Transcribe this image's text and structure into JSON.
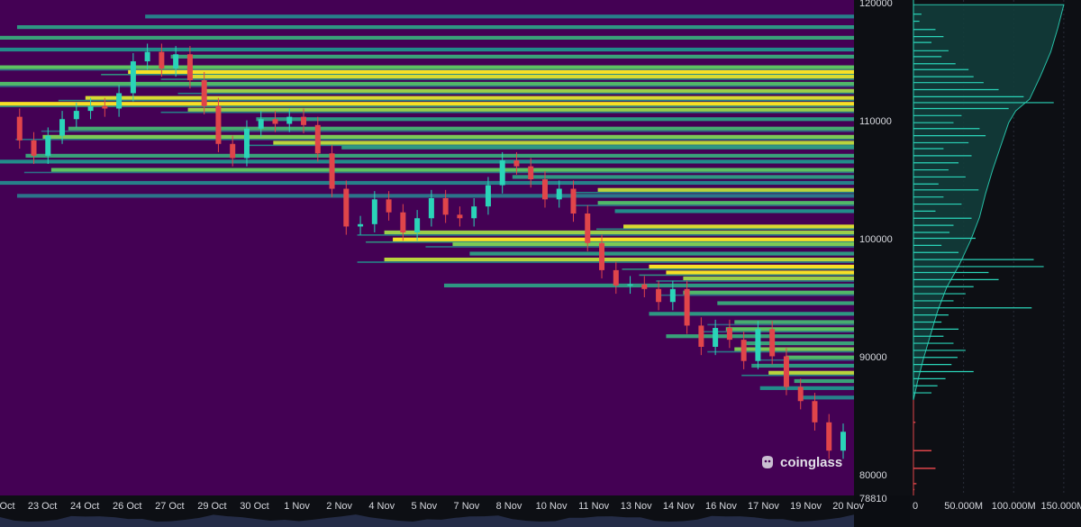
{
  "chart_data": {
    "type": "heatmap",
    "title": "",
    "x_tick_labels": [
      "Oct",
      "23 Oct",
      "24 Oct",
      "26 Oct",
      "27 Oct",
      "29 Oct",
      "30 Oct",
      "1 Nov",
      "2 Nov",
      "4 Nov",
      "5 Nov",
      "7 Nov",
      "8 Nov",
      "10 Nov",
      "11 Nov",
      "13 Nov",
      "14 Nov",
      "16 Nov",
      "17 Nov",
      "19 Nov",
      "20 Nov"
    ],
    "y_ticks": [
      120000,
      110000,
      100000,
      90000,
      80000
    ],
    "y_current_price": 78810,
    "y_range": [
      78400,
      120400
    ],
    "colormap": [
      "#440154",
      "#3b528b",
      "#21918c",
      "#5ec962",
      "#fde725"
    ],
    "price_path": [
      {
        "t": 0,
        "p": 110500
      },
      {
        "t": 1,
        "p": 108500
      },
      {
        "t": 2,
        "p": 107200
      },
      {
        "t": 3,
        "p": 108900
      },
      {
        "t": 4,
        "p": 110300
      },
      {
        "t": 5,
        "p": 111000
      },
      {
        "t": 6,
        "p": 111400
      },
      {
        "t": 7,
        "p": 111200
      },
      {
        "t": 8,
        "p": 112500
      },
      {
        "t": 9,
        "p": 115200
      },
      {
        "t": 10,
        "p": 116000
      },
      {
        "t": 11,
        "p": 114600
      },
      {
        "t": 12,
        "p": 115800
      },
      {
        "t": 13,
        "p": 113600
      },
      {
        "t": 14,
        "p": 111400
      },
      {
        "t": 15,
        "p": 108200
      },
      {
        "t": 16,
        "p": 107000
      },
      {
        "t": 17,
        "p": 109500
      },
      {
        "t": 18,
        "p": 110300
      },
      {
        "t": 19,
        "p": 109900
      },
      {
        "t": 20,
        "p": 110500
      },
      {
        "t": 21,
        "p": 109800
      },
      {
        "t": 22,
        "p": 107400
      },
      {
        "t": 23,
        "p": 104400
      },
      {
        "t": 24,
        "p": 101200
      },
      {
        "t": 25,
        "p": 101400
      },
      {
        "t": 26,
        "p": 103500
      },
      {
        "t": 27,
        "p": 102400
      },
      {
        "t": 28,
        "p": 100700
      },
      {
        "t": 29,
        "p": 101900
      },
      {
        "t": 30,
        "p": 103600
      },
      {
        "t": 31,
        "p": 102200
      },
      {
        "t": 32,
        "p": 101900
      },
      {
        "t": 33,
        "p": 102900
      },
      {
        "t": 34,
        "p": 104700
      },
      {
        "t": 35,
        "p": 106800
      },
      {
        "t": 36,
        "p": 106300
      },
      {
        "t": 37,
        "p": 105200
      },
      {
        "t": 38,
        "p": 103500
      },
      {
        "t": 39,
        "p": 104400
      },
      {
        "t": 40,
        "p": 102300
      },
      {
        "t": 41,
        "p": 99800
      },
      {
        "t": 42,
        "p": 97500
      },
      {
        "t": 43,
        "p": 96200
      },
      {
        "t": 44,
        "p": 96300
      },
      {
        "t": 45,
        "p": 95900
      },
      {
        "t": 46,
        "p": 94800
      },
      {
        "t": 47,
        "p": 95900
      },
      {
        "t": 48,
        "p": 92800
      },
      {
        "t": 49,
        "p": 91000
      },
      {
        "t": 50,
        "p": 92600
      },
      {
        "t": 51,
        "p": 91600
      },
      {
        "t": 52,
        "p": 89800
      },
      {
        "t": 53,
        "p": 92500
      },
      {
        "t": 54,
        "p": 90200
      },
      {
        "t": 55,
        "p": 87600
      },
      {
        "t": 56,
        "p": 86400
      },
      {
        "t": 57,
        "p": 84600
      },
      {
        "t": 58,
        "p": 82200
      },
      {
        "t": 59,
        "p": 83800
      }
    ],
    "liquidation_levels": [
      {
        "price": 119000,
        "start": 0.17,
        "intensity": 0.45
      },
      {
        "price": 118100,
        "start": 0.02,
        "intensity": 0.55
      },
      {
        "price": 117200,
        "start": 0.0,
        "intensity": 0.6
      },
      {
        "price": 116200,
        "start": 0.0,
        "intensity": 0.5
      },
      {
        "price": 115600,
        "start": 0.2,
        "intensity": 0.6
      },
      {
        "price": 114700,
        "start": 0.0,
        "intensity": 0.75
      },
      {
        "price": 114300,
        "start": 0.15,
        "intensity": 1.0
      },
      {
        "price": 113900,
        "start": 0.22,
        "intensity": 0.95
      },
      {
        "price": 113300,
        "start": 0.0,
        "intensity": 0.7
      },
      {
        "price": 112700,
        "start": 0.24,
        "intensity": 0.85
      },
      {
        "price": 112100,
        "start": 0.1,
        "intensity": 0.95
      },
      {
        "price": 111600,
        "start": 0.0,
        "intensity": 1.0
      },
      {
        "price": 111100,
        "start": 0.22,
        "intensity": 0.85
      },
      {
        "price": 110300,
        "start": 0.3,
        "intensity": 0.55
      },
      {
        "price": 109500,
        "start": 0.08,
        "intensity": 0.65
      },
      {
        "price": 108800,
        "start": 0.05,
        "intensity": 0.8
      },
      {
        "price": 108300,
        "start": 0.32,
        "intensity": 0.9
      },
      {
        "price": 107900,
        "start": 0.4,
        "intensity": 0.55
      },
      {
        "price": 107200,
        "start": 0.03,
        "intensity": 0.6
      },
      {
        "price": 106700,
        "start": 0.0,
        "intensity": 0.5
      },
      {
        "price": 106000,
        "start": 0.06,
        "intensity": 0.75
      },
      {
        "price": 105400,
        "start": 0.6,
        "intensity": 0.55
      },
      {
        "price": 104900,
        "start": 0.0,
        "intensity": 0.45
      },
      {
        "price": 104300,
        "start": 0.7,
        "intensity": 0.9
      },
      {
        "price": 103800,
        "start": 0.02,
        "intensity": 0.4
      },
      {
        "price": 103200,
        "start": 0.7,
        "intensity": 0.7
      },
      {
        "price": 102500,
        "start": 0.72,
        "intensity": 0.5
      },
      {
        "price": 101200,
        "start": 0.73,
        "intensity": 0.95
      },
      {
        "price": 100700,
        "start": 0.45,
        "intensity": 0.85
      },
      {
        "price": 100100,
        "start": 0.46,
        "intensity": 1.0
      },
      {
        "price": 99700,
        "start": 0.53,
        "intensity": 0.8
      },
      {
        "price": 98900,
        "start": 0.55,
        "intensity": 0.55
      },
      {
        "price": 98400,
        "start": 0.45,
        "intensity": 0.9
      },
      {
        "price": 97800,
        "start": 0.76,
        "intensity": 1.0
      },
      {
        "price": 97300,
        "start": 0.78,
        "intensity": 1.0
      },
      {
        "price": 96800,
        "start": 0.8,
        "intensity": 0.85
      },
      {
        "price": 96200,
        "start": 0.52,
        "intensity": 0.55
      },
      {
        "price": 95600,
        "start": 0.8,
        "intensity": 0.7
      },
      {
        "price": 94700,
        "start": 0.84,
        "intensity": 0.6
      },
      {
        "price": 93800,
        "start": 0.76,
        "intensity": 0.55
      },
      {
        "price": 93100,
        "start": 0.86,
        "intensity": 0.65
      },
      {
        "price": 92500,
        "start": 0.85,
        "intensity": 0.75
      },
      {
        "price": 91900,
        "start": 0.78,
        "intensity": 0.6
      },
      {
        "price": 91300,
        "start": 0.87,
        "intensity": 0.6
      },
      {
        "price": 90800,
        "start": 0.86,
        "intensity": 0.8
      },
      {
        "price": 90100,
        "start": 0.92,
        "intensity": 0.7
      },
      {
        "price": 89400,
        "start": 0.88,
        "intensity": 0.55
      },
      {
        "price": 88800,
        "start": 0.9,
        "intensity": 0.9
      },
      {
        "price": 88100,
        "start": 0.93,
        "intensity": 0.6
      },
      {
        "price": 87500,
        "start": 0.89,
        "intensity": 0.5
      },
      {
        "price": 86700,
        "start": 0.94,
        "intensity": 0.45
      }
    ],
    "profile": {
      "x_tick_labels": [
        "0",
        "50.000M",
        "100.000M",
        "150.000M"
      ],
      "x_range_m": [
        0,
        160
      ],
      "cumulative": [
        {
          "price": 86500,
          "v": 0
        },
        {
          "price": 88000,
          "v": 4
        },
        {
          "price": 90000,
          "v": 10
        },
        {
          "price": 92000,
          "v": 17
        },
        {
          "price": 94000,
          "v": 24
        },
        {
          "price": 96000,
          "v": 33
        },
        {
          "price": 98000,
          "v": 46
        },
        {
          "price": 100000,
          "v": 57
        },
        {
          "price": 102000,
          "v": 66
        },
        {
          "price": 104000,
          "v": 72
        },
        {
          "price": 106000,
          "v": 79
        },
        {
          "price": 108000,
          "v": 87
        },
        {
          "price": 110000,
          "v": 95
        },
        {
          "price": 111000,
          "v": 102
        },
        {
          "price": 112000,
          "v": 116
        },
        {
          "price": 114000,
          "v": 127
        },
        {
          "price": 116000,
          "v": 137
        },
        {
          "price": 118000,
          "v": 144
        },
        {
          "price": 120000,
          "v": 150
        }
      ],
      "bars": [
        {
          "price": 119200,
          "v": 8
        },
        {
          "price": 118600,
          "v": 6
        },
        {
          "price": 117900,
          "v": 22
        },
        {
          "price": 117300,
          "v": 30
        },
        {
          "price": 116800,
          "v": 18
        },
        {
          "price": 116100,
          "v": 35
        },
        {
          "price": 115600,
          "v": 28
        },
        {
          "price": 115000,
          "v": 42
        },
        {
          "price": 114500,
          "v": 55
        },
        {
          "price": 113900,
          "v": 60
        },
        {
          "price": 113400,
          "v": 70
        },
        {
          "price": 112800,
          "v": 85
        },
        {
          "price": 112200,
          "v": 110
        },
        {
          "price": 111700,
          "v": 140
        },
        {
          "price": 111200,
          "v": 95
        },
        {
          "price": 110600,
          "v": 48
        },
        {
          "price": 110000,
          "v": 40
        },
        {
          "price": 109500,
          "v": 66
        },
        {
          "price": 108900,
          "v": 72
        },
        {
          "price": 108300,
          "v": 55
        },
        {
          "price": 107800,
          "v": 30
        },
        {
          "price": 107200,
          "v": 58
        },
        {
          "price": 106600,
          "v": 45
        },
        {
          "price": 106000,
          "v": 35
        },
        {
          "price": 105400,
          "v": 52
        },
        {
          "price": 104800,
          "v": 25
        },
        {
          "price": 104300,
          "v": 65
        },
        {
          "price": 103700,
          "v": 30
        },
        {
          "price": 103100,
          "v": 48
        },
        {
          "price": 102500,
          "v": 22
        },
        {
          "price": 101900,
          "v": 58
        },
        {
          "price": 101300,
          "v": 40
        },
        {
          "price": 100700,
          "v": 36
        },
        {
          "price": 100200,
          "v": 62
        },
        {
          "price": 99600,
          "v": 28
        },
        {
          "price": 99000,
          "v": 45
        },
        {
          "price": 98400,
          "v": 120
        },
        {
          "price": 97800,
          "v": 130
        },
        {
          "price": 97300,
          "v": 75
        },
        {
          "price": 96700,
          "v": 85
        },
        {
          "price": 96100,
          "v": 60
        },
        {
          "price": 95500,
          "v": 52
        },
        {
          "price": 94900,
          "v": 40
        },
        {
          "price": 94300,
          "v": 118
        },
        {
          "price": 93700,
          "v": 35
        },
        {
          "price": 93100,
          "v": 28
        },
        {
          "price": 92500,
          "v": 45
        },
        {
          "price": 91900,
          "v": 30
        },
        {
          "price": 91300,
          "v": 40
        },
        {
          "price": 90700,
          "v": 52
        },
        {
          "price": 90100,
          "v": 44
        },
        {
          "price": 89500,
          "v": 38
        },
        {
          "price": 88900,
          "v": 60
        },
        {
          "price": 88300,
          "v": 32
        },
        {
          "price": 87700,
          "v": 24
        },
        {
          "price": 87100,
          "v": 18
        }
      ],
      "short_bars": [
        {
          "price": 84600,
          "v": 2
        },
        {
          "price": 82200,
          "v": 18
        },
        {
          "price": 80700,
          "v": 22
        },
        {
          "price": 79400,
          "v": 3
        },
        {
          "price": 78900,
          "v": 1
        }
      ]
    }
  },
  "watermark": "coinglass",
  "colors": {
    "background": "#0d0f14",
    "profile": "#2ad4b8",
    "short_profile": "#e0454a",
    "candle_up": "#2ad4b8",
    "candle_down": "#e0454a"
  }
}
